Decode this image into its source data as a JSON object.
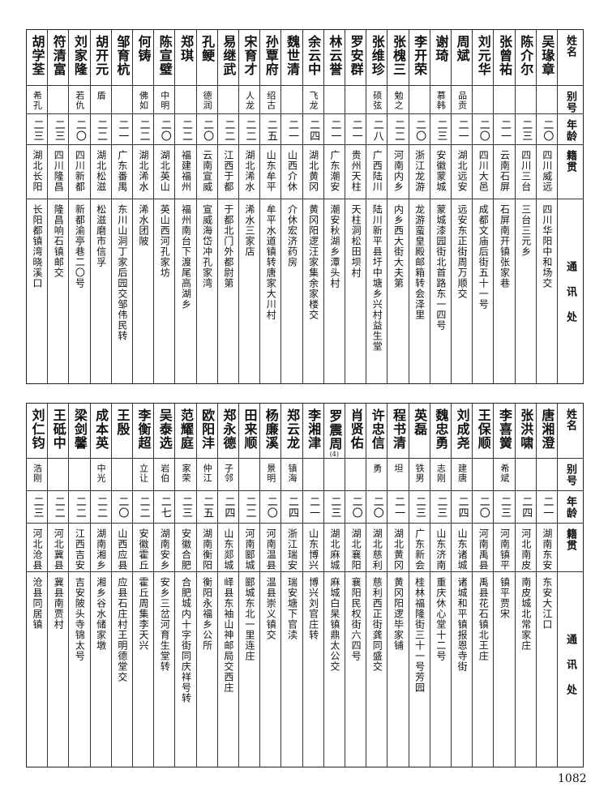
{
  "headers": {
    "name": "姓名",
    "alias": "别号",
    "age": "年龄",
    "native": "籍贯",
    "address": "通讯处"
  },
  "tables": [
    {
      "rows": [
        {
          "name": "吴瑑章",
          "alias": "",
          "age": "二〇",
          "native": "四川威远",
          "address": "四川华阳中和场交"
        },
        {
          "name": "陈介尔",
          "alias": "",
          "age": "二三",
          "native": "四川三台",
          "address": "三台三元乡"
        },
        {
          "name": "张曾祐",
          "alias": "",
          "age": "二一",
          "native": "云南石屏",
          "address": "石屏南开镇张家巷"
        },
        {
          "name": "刘元华",
          "alias": "",
          "age": "二〇",
          "native": "四川大邑",
          "address": "成都文庙后街五十一号"
        },
        {
          "name": "周斌",
          "alias": "品贡",
          "age": "二一",
          "native": "湖北远安",
          "address": "远安东正街周万顺交"
        },
        {
          "name": "谢琦",
          "alias": "慕韩",
          "age": "二三",
          "native": "安徽蒙城",
          "address": "蒙城漆园街北首路东一四号"
        },
        {
          "name": "李开荣",
          "alias": "",
          "age": "二〇",
          "native": "浙江龙游",
          "address": "龙游蛮皇殿邮箱转会泽里"
        },
        {
          "name": "张槐三",
          "alias": "勉之",
          "age": "二二",
          "native": "河南内乡",
          "address": "内乡西大街大夫第"
        },
        {
          "name": "张维珍",
          "alias": "硕弦",
          "age": "二八",
          "native": "广西陆川",
          "address": "陆川新平县圩中塘乡兴村益生堂"
        },
        {
          "name": "罗安群",
          "alias": "",
          "age": "二一",
          "native": "贵州天柱",
          "address": "天柱洞松田坝村"
        },
        {
          "name": "林云誉",
          "alias": "",
          "age": "二一",
          "native": "广东潮安",
          "address": "潮安秋湖乡潭头村"
        },
        {
          "name": "余云中",
          "alias": "飞龙",
          "age": "二四",
          "native": "湖北黄冈",
          "address": "黄冈阳逻汪家集余家楼交"
        },
        {
          "name": "魏世清",
          "alias": "",
          "age": "二一",
          "native": "山西介休",
          "address": "介休宏济药房"
        },
        {
          "name": "孙覃府",
          "alias": "绍古",
          "age": "二五",
          "native": "山东牟平",
          "address": "牟平水道镇转唐家大川村"
        },
        {
          "name": "宋育才",
          "alias": "人龙",
          "age": "二二",
          "native": "湖北浠水",
          "address": "浠水三家店"
        },
        {
          "name": "易继武",
          "alias": "",
          "age": "二二",
          "native": "江西于都",
          "address": "于都北门外都尉第"
        },
        {
          "name": "孔鲠",
          "alias": "德润",
          "age": "二〇",
          "native": "云南宣威",
          "address": "宣威海岱冲孔家湾"
        },
        {
          "name": "郑琪",
          "alias": "",
          "age": "二二",
          "native": "福建福州",
          "address": "福州南台下渡尾高湖乡"
        },
        {
          "name": "陈宣璧",
          "alias": "中明",
          "age": "二〇",
          "native": "湖北英山",
          "address": "英山西河孔家坊"
        },
        {
          "name": "何铸",
          "alias": "佛如",
          "age": "二二",
          "native": "湖北浠水",
          "address": "浠水团陂"
        },
        {
          "name": "邹育杭",
          "alias": "",
          "age": "二一",
          "native": "广东番禺",
          "address": "东川山洞丁家后园交邹伟民转"
        },
        {
          "name": "胡开元",
          "alias": "盾",
          "age": "二二",
          "native": "湖北松滋",
          "address": "松滋磨市信孚"
        },
        {
          "name": "刘家隆",
          "alias": "若仇",
          "age": "二〇",
          "native": "四川新都",
          "address": "新都渝亭巷二〇号"
        },
        {
          "name": "符清富",
          "alias": "",
          "age": "二三",
          "native": "四川隆昌",
          "address": "隆昌响石镇邮交"
        },
        {
          "name": "胡学荃",
          "alias": "希孔",
          "age": "二三",
          "native": "湖北长阳",
          "address": "长阳都镇湾晓溪口"
        }
      ]
    },
    {
      "rows": [
        {
          "name": "唐湘澄",
          "alias": "",
          "age": "二一",
          "native": "湖南东安",
          "address": "东安大江口"
        },
        {
          "name": "张洪啸",
          "alias": "",
          "age": "二四",
          "native": "河北南皮",
          "address": "南皮城北常家庄"
        },
        {
          "name": "李喜黉",
          "alias": "希斌",
          "age": "二三",
          "native": "河南镇平",
          "address": "镇平贾宋"
        },
        {
          "name": "王保顺",
          "alias": "",
          "age": "二〇",
          "native": "河南禹县",
          "address": "禹县花石镇北王庄"
        },
        {
          "name": "刘成尧",
          "alias": "建唐",
          "age": "二四",
          "native": "山东诸城",
          "address": "诸城和平镇报恩寺街"
        },
        {
          "name": "魏忠勇",
          "alias": "志刚",
          "age": "二三",
          "native": "山东济南",
          "address": "重庆休心堂十二号"
        },
        {
          "name": "英磊",
          "alias": "铁男",
          "age": "二三",
          "native": "广东新会",
          "address": "桂林福隆街三十一号芳园"
        },
        {
          "name": "程书清",
          "alias": "坦",
          "age": "二一",
          "native": "湖北黄冈",
          "address": "黄冈阳逻毕家铺"
        },
        {
          "name": "许忠信",
          "alias": "勇",
          "age": "二〇",
          "native": "湖北慈利",
          "address": "慈利西正街龚同盛交"
        },
        {
          "name": "肖贤佑",
          "alias": "",
          "age": "二〇",
          "native": "湖北襄阳",
          "address": "襄阳民权街六四号"
        },
        {
          "name": "罗震周",
          "note": "(4)",
          "alias": "",
          "age": "二三",
          "native": "湖北麻城",
          "address": "麻城白杲镇鼎太公交"
        },
        {
          "name": "李湘津",
          "alias": "",
          "age": "二一",
          "native": "山东博兴",
          "address": "博兴刘官庄转"
        },
        {
          "name": "郑云龙",
          "alias": "镇海",
          "age": "二四",
          "native": "浙江瑞安",
          "address": "瑞安塘下官渎"
        },
        {
          "name": "杨廉溪",
          "alias": "景明",
          "age": "二〇",
          "native": "河南温县",
          "address": "温县崇义镇交"
        },
        {
          "name": "田来顺",
          "alias": "",
          "age": "二二",
          "native": "河南郾城",
          "address": "郾城东北一里连庄"
        },
        {
          "name": "郑永德",
          "alias": "子邻",
          "age": "二四",
          "native": "山东郯城",
          "address": "峄县东袖山神邮局交西庄"
        },
        {
          "name": "欧阳沣",
          "alias": "仲江",
          "age": "二五",
          "native": "湖南衡阳",
          "address": "衡阳永福乡公所"
        },
        {
          "name": "范耀庭",
          "alias": "家荣",
          "age": "二三",
          "native": "安徽合肥",
          "address": "合肥城内十字街同庆祥号转"
        },
        {
          "name": "吴泰选",
          "alias": "岩伯",
          "age": "二七",
          "native": "湖南安乡",
          "address": "安乡三岔河育生堂转"
        },
        {
          "name": "李衡超",
          "alias": "立让",
          "age": "二二",
          "native": "安徽霍丘",
          "address": "霍丘周集李天兴"
        },
        {
          "name": "王殷",
          "alias": "",
          "age": "二〇",
          "native": "山西应县",
          "address": "应县石庄村王明德堂交"
        },
        {
          "name": "成本英",
          "alias": "中光",
          "age": "二二",
          "native": "湖南湘乡",
          "address": "湘乡谷水储家墩"
        },
        {
          "name": "梁剑馨",
          "alias": "",
          "age": "二二",
          "native": "江西吉安",
          "address": "吉安陂头寺锦太号"
        },
        {
          "name": "王砥中",
          "alias": "",
          "age": "二二",
          "native": "河北冀县",
          "address": "冀县南贾村"
        },
        {
          "name": "刘仁钧",
          "alias": "浩刚",
          "age": "二三",
          "native": "河北沧县",
          "address": "沧县同居镇"
        }
      ]
    }
  ],
  "page_number": "1082"
}
